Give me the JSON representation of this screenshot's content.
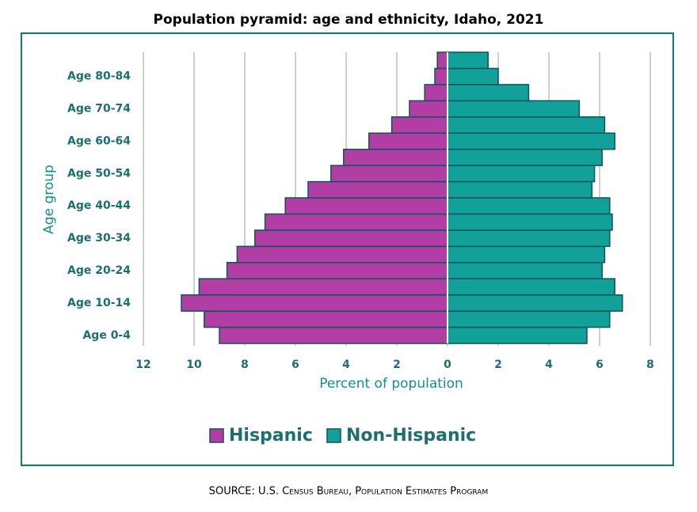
{
  "chart_data": {
    "type": "pyramid",
    "title": "Population pyramid: age and ethnicity, Idaho, 2021",
    "x_label": "Percent of population",
    "y_label": "Age group",
    "categories": [
      "Age 0-4",
      null,
      "Age 10-14",
      null,
      "Age 20-24",
      null,
      "Age 30-34",
      null,
      "Age 40-44",
      null,
      "Age 50-54",
      null,
      "Age 60-64",
      null,
      "Age 70-74",
      null,
      "Age 80-84",
      null
    ],
    "series": [
      {
        "name": "Hispanic",
        "color": "#b23da4",
        "values": [
          -9.0,
          -9.6,
          -10.5,
          -9.8,
          -8.7,
          -8.3,
          -7.6,
          -7.2,
          -6.4,
          -5.5,
          -4.6,
          -4.1,
          -3.1,
          -2.2,
          -1.5,
          -0.9,
          -0.5,
          -0.4
        ]
      },
      {
        "name": "Non-Hispanic",
        "color": "#12a09b",
        "values": [
          5.5,
          6.4,
          6.9,
          6.6,
          6.1,
          6.2,
          6.4,
          6.5,
          6.4,
          5.7,
          5.8,
          6.1,
          6.6,
          6.2,
          5.2,
          3.2,
          2.0,
          1.6
        ]
      }
    ],
    "xlim": [
      -12,
      8
    ],
    "xticks": [
      {
        "value": -12,
        "label": "12"
      },
      {
        "value": -10,
        "label": "10"
      },
      {
        "value": -8,
        "label": "8"
      },
      {
        "value": -6,
        "label": "6"
      },
      {
        "value": -4,
        "label": "4"
      },
      {
        "value": -2,
        "label": "2"
      },
      0,
      2,
      4,
      6,
      8
    ],
    "grid": true,
    "legend": "bottom",
    "source": "SOURCE: U.S. Census Bureau, Population Estimates Program"
  }
}
